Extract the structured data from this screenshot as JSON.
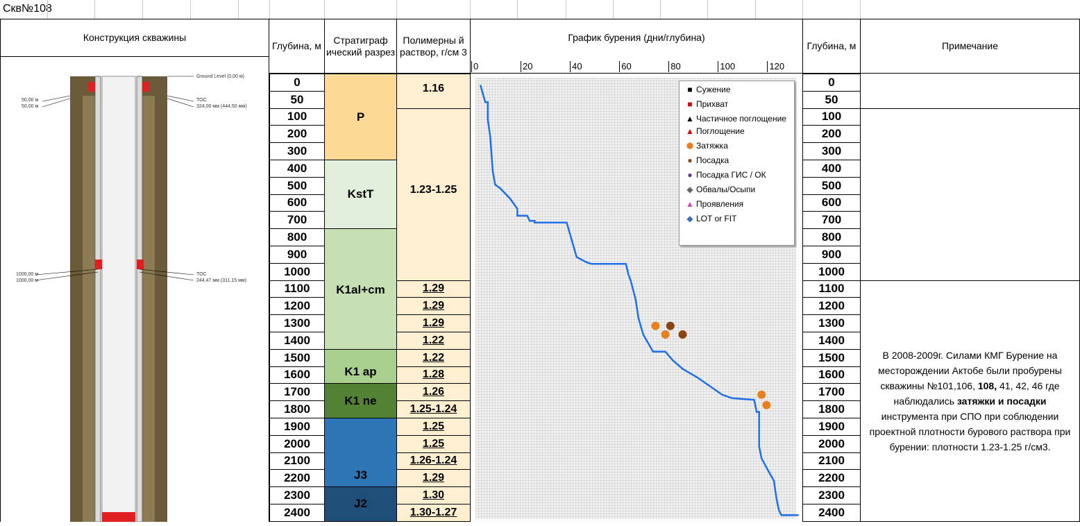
{
  "sheet_title": "Скв№108",
  "headers": {
    "construction": "Конструкция скважины",
    "depth_left": "Глубина, м",
    "strat": "Стратиграф ический разрез",
    "fluid": "Полимерны й раствор, г/см 3",
    "chart": "График бурения (дни/глубина)",
    "depth_right": "Глубина, м",
    "note": "Примечание"
  },
  "depths": [
    "0",
    "50",
    "100",
    "200",
    "300",
    "400",
    "500",
    "600",
    "700",
    "800",
    "900",
    "1000",
    "1100",
    "1200",
    "1300",
    "1400",
    "1500",
    "1600",
    "1700",
    "1800",
    "1900",
    "2000",
    "2100",
    "2200",
    "2300",
    "2400"
  ],
  "strat": [
    {
      "label": "P",
      "color": "#fcd994"
    },
    {
      "label": "KstT",
      "color": "#e2efda"
    },
    {
      "label": "K1al+cm",
      "color": "#c6e0b4"
    },
    {
      "label": "K1 ap",
      "color": "#a9d08e"
    },
    {
      "label": "K1 ne",
      "color": "#548235"
    },
    {
      "label": "J3",
      "color": "#2e75b6"
    },
    {
      "label": "J2",
      "color": "#1f4e78"
    }
  ],
  "fluid": [
    "1.16",
    "1.23-1.25",
    "1.29",
    "1.29",
    "1.29",
    "1.22",
    "1.22",
    "1.28",
    "1.26",
    "1.25-1.24",
    "1.25",
    "1.25",
    "1.26-1.24",
    "1.29",
    "1.30",
    "1.30-1.27"
  ],
  "well_labels": {
    "ground": "Ground Level (0,00 м)",
    "toc1": "TOC",
    "csg1": "324,00 мм (444,50 мм)",
    "d50a": "50,00 м",
    "d50b": "50,00 м",
    "toc2": "TOC",
    "csg2": "244,47 мм (311,15 мм)",
    "d1000a": "1000,00 м",
    "d1000b": "1000,00 м"
  },
  "legend": [
    {
      "label": "Сужение",
      "symbol": "■",
      "color": "#000000"
    },
    {
      "label": "Прихват",
      "symbol": "■",
      "color": "#e00000"
    },
    {
      "label": "Частичное поглощение",
      "symbol": "▲",
      "color": "#000000"
    },
    {
      "label": "Поглощение",
      "symbol": "▲",
      "color": "#e00000"
    },
    {
      "label": "Затяжка",
      "symbol": "⬢",
      "color": "#e8801e"
    },
    {
      "label": "Посадка",
      "symbol": "●",
      "color": "#8b4513"
    },
    {
      "label": "Посадка ГИС / ОК",
      "symbol": "●",
      "color": "#5b3a8a"
    },
    {
      "label": "Обвалы/Осыпи",
      "symbol": "◆",
      "color": "#666666"
    },
    {
      "label": "Проявления",
      "symbol": "▲",
      "color": "#e040c0"
    },
    {
      "label": "LOT or FIT",
      "symbol": "◆",
      "color": "#3d6fb5"
    }
  ],
  "note_parts": [
    {
      "t": "В 2008-2009г. Силами КМГ Бурение на месторождении Актобе были пробурены скважины №101,106, ",
      "b": false
    },
    {
      "t": "108,",
      "b": true
    },
    {
      "t": " 41, 42, 46 где наблюдались ",
      "b": false
    },
    {
      "t": "затяжки и посадки",
      "b": true
    },
    {
      "t": " инструмента при СПО при соблюдении проектной плотности бурового раствора при бурении: плотности 1.23-1.25 г/см3.",
      "b": false
    }
  ],
  "chart_data": {
    "type": "line",
    "title": "График бурения (дни/глубина)",
    "x_ticks": [
      "0",
      "20",
      "40",
      "60",
      "80",
      "100",
      "120"
    ],
    "xlim": [
      0,
      130
    ],
    "depth_ticks": [
      "0",
      "50",
      "100",
      "200",
      "300",
      "400",
      "500",
      "600",
      "700",
      "800",
      "900",
      "1000",
      "1100",
      "1200",
      "1300",
      "1400",
      "1500",
      "1600",
      "1700",
      "1800",
      "1900",
      "2000",
      "2100",
      "2200",
      "2300",
      "2400"
    ],
    "series": [
      {
        "name": "Бурение",
        "color": "#1e6fe8",
        "points": [
          [
            2,
            0
          ],
          [
            4,
            50
          ],
          [
            5,
            50
          ],
          [
            5,
            100
          ],
          [
            6,
            200
          ],
          [
            7,
            400
          ],
          [
            8,
            480
          ],
          [
            10,
            500
          ],
          [
            14,
            560
          ],
          [
            16,
            600
          ],
          [
            17,
            620
          ],
          [
            17,
            660
          ],
          [
            21,
            660
          ],
          [
            22,
            690
          ],
          [
            24,
            690
          ],
          [
            24,
            700
          ],
          [
            37,
            700
          ],
          [
            38,
            750
          ],
          [
            40,
            850
          ],
          [
            41,
            900
          ],
          [
            45,
            930
          ],
          [
            47,
            940
          ],
          [
            61,
            940
          ],
          [
            62,
            1000
          ],
          [
            63,
            1040
          ],
          [
            65,
            1150
          ],
          [
            66,
            1250
          ],
          [
            67,
            1300
          ],
          [
            68,
            1350
          ],
          [
            70,
            1400
          ],
          [
            72,
            1450
          ],
          [
            77,
            1450
          ],
          [
            80,
            1500
          ],
          [
            84,
            1550
          ],
          [
            90,
            1600
          ],
          [
            95,
            1650
          ],
          [
            100,
            1700
          ],
          [
            104,
            1720
          ],
          [
            113,
            1730
          ],
          [
            114,
            1800
          ],
          [
            115,
            1800
          ],
          [
            115,
            2000
          ],
          [
            116,
            2070
          ],
          [
            119,
            2150
          ],
          [
            121,
            2200
          ],
          [
            122,
            2300
          ],
          [
            123,
            2370
          ],
          [
            124,
            2400
          ],
          [
            131,
            2400
          ]
        ]
      },
      {
        "name": "Затяжка",
        "color": "#e8801e",
        "markers": [
          [
            73,
            1300
          ],
          [
            77,
            1350
          ],
          [
            116,
            1700
          ],
          [
            118,
            1760
          ]
        ]
      },
      {
        "name": "Посадка",
        "color": "#8b4513",
        "markers": [
          [
            79,
            1300
          ],
          [
            84,
            1350
          ]
        ]
      }
    ]
  }
}
